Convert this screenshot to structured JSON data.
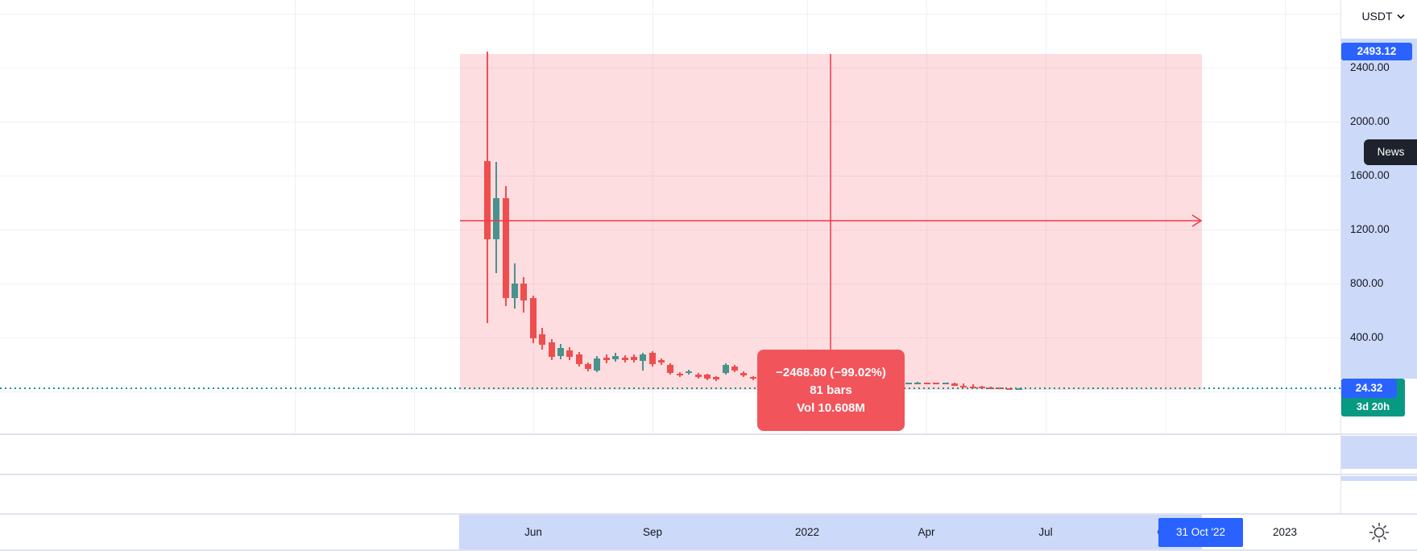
{
  "colors": {
    "accent_blue": "#2962ff",
    "teal": "#089981",
    "measure_red": "#f23645",
    "measure_fill": "rgba(242,54,69,0.17)",
    "tooltip_red": "#f2545b",
    "candle_up": "#26a69a",
    "candle_down": "#ef5350",
    "scale_highlight": "#cdd9f8",
    "panel_dark": "#1e222d",
    "text": "#131722"
  },
  "currency_toggle": {
    "label": "USDT"
  },
  "news_button": {
    "label": "News"
  },
  "price_axis": {
    "measure_start_price_label": "2493.12",
    "measure_end_price_label": "24.32",
    "bar_countdown_label": "3d 20h"
  },
  "time_axis": {
    "selected_date_label": "31 Oct '22"
  },
  "chart_data": {
    "type": "candlestick",
    "quote_currency": "USDT",
    "last_price": 24.32,
    "bar_countdown": "3d 20h",
    "measurement": {
      "change_text": "−2468.80 (−99.02%)",
      "bars_text": "81 bars",
      "volume_text": "Vol 10.608M",
      "price_change": -2468.8,
      "percent_change": -99.02,
      "bars": 81,
      "volume": "10.608M",
      "start_price": 2493.12,
      "end_price": 24.32,
      "end_date_label": "31 Oct '22"
    },
    "y_axis": {
      "visible_range": [
        -90,
        2900
      ],
      "grid_interval": 400,
      "ticks": [
        {
          "price": 2800,
          "label": ""
        },
        {
          "price": 2400,
          "label": "2400.00"
        },
        {
          "price": 2000,
          "label": "2000.00"
        },
        {
          "price": 1600,
          "label": "1600.00"
        },
        {
          "price": 1200,
          "label": "1200.00"
        },
        {
          "price": 800,
          "label": "800.00"
        },
        {
          "price": 400,
          "label": "400.00"
        },
        {
          "price": 0,
          "label": ""
        }
      ]
    },
    "x_axis": {
      "ticks": [
        {
          "label": "",
          "pos": 366,
          "kind": "quarter"
        },
        {
          "label": "",
          "pos": 514,
          "kind": "quarter"
        },
        {
          "label": "Jun",
          "pos": 662,
          "kind": "month"
        },
        {
          "label": "Sep",
          "pos": 810,
          "kind": "month"
        },
        {
          "label": "2022",
          "pos": 1002,
          "kind": "year"
        },
        {
          "label": "Apr",
          "pos": 1150,
          "kind": "month"
        },
        {
          "label": "Jul",
          "pos": 1298,
          "kind": "month"
        },
        {
          "label": "Oct",
          "pos": 1447,
          "kind": "month"
        },
        {
          "label": "2023",
          "pos": 1595,
          "kind": "year"
        }
      ]
    },
    "candles": [
      [
        1710,
        2520,
        510,
        1130
      ],
      [
        1130,
        1700,
        880,
        1430
      ],
      [
        1430,
        1520,
        630,
        690
      ],
      [
        690,
        950,
        615,
        800
      ],
      [
        800,
        850,
        585,
        675
      ],
      [
        690,
        710,
        360,
        395
      ],
      [
        424,
        470,
        310,
        346
      ],
      [
        364,
        390,
        233,
        257
      ],
      [
        263,
        352,
        239,
        322
      ],
      [
        305,
        330,
        233,
        257
      ],
      [
        275,
        293,
        185,
        203
      ],
      [
        203,
        215,
        149,
        167
      ],
      [
        155,
        263,
        143,
        245
      ],
      [
        251,
        275,
        209,
        233
      ],
      [
        239,
        287,
        221,
        263
      ],
      [
        251,
        269,
        215,
        233
      ],
      [
        257,
        275,
        215,
        233
      ],
      [
        227,
        287,
        155,
        275
      ],
      [
        287,
        299,
        185,
        203
      ],
      [
        233,
        245,
        197,
        215
      ],
      [
        197,
        209,
        125,
        137
      ],
      [
        131,
        143,
        107,
        119
      ],
      [
        137,
        161,
        125,
        149
      ],
      [
        125,
        137,
        95,
        107
      ],
      [
        125,
        131,
        83,
        95
      ],
      [
        107,
        113,
        77,
        89
      ],
      [
        137,
        209,
        125,
        197
      ],
      [
        185,
        197,
        143,
        155
      ],
      [
        137,
        149,
        107,
        119
      ],
      [
        107,
        113,
        83,
        95
      ],
      [
        95,
        100,
        82,
        88
      ],
      [
        88,
        96,
        84,
        91
      ],
      [
        91,
        94,
        79,
        84
      ],
      [
        84,
        88,
        75,
        80
      ],
      [
        80,
        86,
        76,
        83
      ],
      [
        83,
        85,
        73,
        78
      ],
      [
        78,
        81,
        70,
        74
      ],
      [
        74,
        79,
        71,
        76
      ],
      [
        76,
        78,
        68,
        72
      ],
      [
        72,
        75,
        65,
        69
      ],
      [
        69,
        73,
        66,
        71
      ],
      [
        71,
        73,
        64,
        68
      ],
      [
        68,
        70,
        62,
        66
      ],
      [
        66,
        69,
        63,
        67
      ],
      [
        67,
        69,
        61,
        65
      ],
      [
        65,
        68,
        62,
        66
      ],
      [
        65,
        68,
        63,
        66
      ],
      [
        66,
        69,
        64,
        67
      ],
      [
        66,
        68,
        61,
        64
      ],
      [
        64,
        66,
        59,
        62
      ],
      [
        62,
        65,
        60,
        63
      ],
      [
        60,
        64,
        40,
        42
      ],
      [
        42,
        57,
        28,
        30
      ],
      [
        36,
        54,
        22,
        24
      ],
      [
        36,
        40,
        22,
        26
      ],
      [
        30,
        34,
        16,
        18
      ],
      [
        28,
        32,
        18,
        20
      ],
      [
        22,
        26,
        12,
        16
      ],
      [
        18,
        26,
        14,
        24
      ]
    ]
  }
}
